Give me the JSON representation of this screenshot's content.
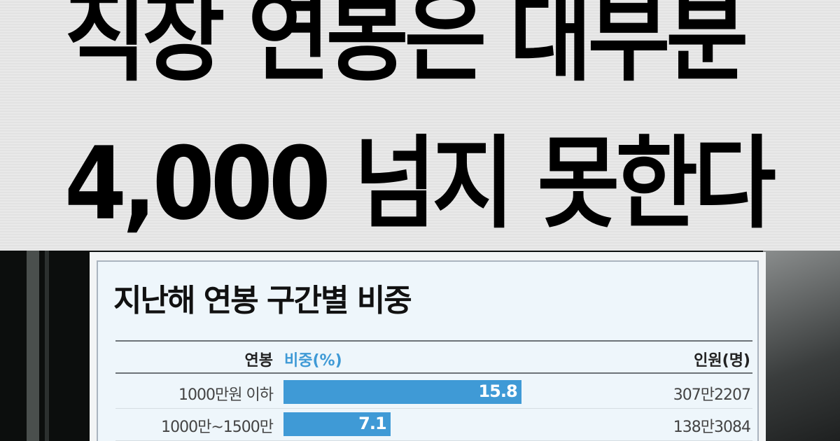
{
  "headline": {
    "line1": "직장 연봉은 대부분",
    "line2": "4,000 넘지 못한다"
  },
  "chart_data": {
    "type": "bar",
    "title": "지난해 연봉 구간별 비중",
    "headers": {
      "category": "연봉",
      "value": "비중(%)",
      "count": "인원(명)"
    },
    "categories": [
      "1000만원 이하",
      "1000만~1500만"
    ],
    "values": [
      15.8,
      7.1
    ],
    "counts": [
      "307만2207",
      "138만3084"
    ],
    "bar_color": "#3f9ad6"
  }
}
